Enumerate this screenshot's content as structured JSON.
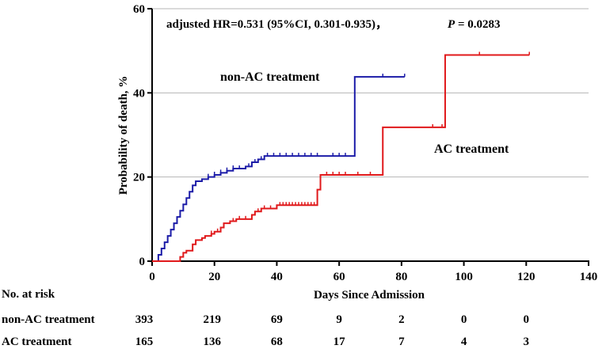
{
  "chart_data": {
    "type": "line",
    "subtype": "kaplan-meier-step",
    "title": "adjusted HR=0.531 (95%CI, 0.301-0.935)，",
    "p_label": "P",
    "p_value": " = 0.0283",
    "xlabel": "Days Since Admission",
    "ylabel": "Probability of death, %",
    "xlim": [
      0,
      140
    ],
    "ylim": [
      0,
      60
    ],
    "xticks": [
      0,
      20,
      40,
      60,
      80,
      100,
      120,
      140
    ],
    "yticks": [
      0,
      20,
      40,
      60
    ],
    "grid_y": true,
    "series": [
      {
        "name": "non-AC treatment",
        "color": "#1c1ca8",
        "steps": [
          [
            0,
            0
          ],
          [
            1.5,
            0
          ],
          [
            2,
            1.5
          ],
          [
            3,
            3
          ],
          [
            4,
            4.5
          ],
          [
            5,
            6
          ],
          [
            6,
            7.5
          ],
          [
            7,
            9
          ],
          [
            8,
            10.5
          ],
          [
            9,
            12
          ],
          [
            10,
            13.5
          ],
          [
            11,
            15
          ],
          [
            12,
            16.5
          ],
          [
            13,
            18
          ],
          [
            14,
            19
          ],
          [
            16,
            19.5
          ],
          [
            18,
            20
          ],
          [
            20,
            20.5
          ],
          [
            22,
            21
          ],
          [
            24,
            21.5
          ],
          [
            26,
            22
          ],
          [
            30,
            22.5
          ],
          [
            32,
            23.5
          ],
          [
            34,
            24.2
          ],
          [
            36,
            25
          ],
          [
            65,
            25
          ],
          [
            65,
            43.8
          ],
          [
            81,
            43.8
          ]
        ],
        "censors": [
          [
            18,
            20
          ],
          [
            20,
            20.5
          ],
          [
            22,
            21
          ],
          [
            24,
            21.5
          ],
          [
            26,
            22
          ],
          [
            28,
            22
          ],
          [
            31,
            22.5
          ],
          [
            33,
            23.5
          ],
          [
            35,
            24.2
          ],
          [
            37,
            25
          ],
          [
            39,
            25
          ],
          [
            41,
            25
          ],
          [
            43,
            25
          ],
          [
            45,
            25
          ],
          [
            47,
            25
          ],
          [
            49,
            25
          ],
          [
            51,
            25
          ],
          [
            53,
            25
          ],
          [
            58,
            25
          ],
          [
            60,
            25
          ],
          [
            62,
            25
          ],
          [
            74,
            43.8
          ],
          [
            81,
            43.8
          ]
        ]
      },
      {
        "name": "AC treatment",
        "color": "#e0191b",
        "steps": [
          [
            0,
            0
          ],
          [
            9,
            0
          ],
          [
            9,
            1
          ],
          [
            10,
            2
          ],
          [
            11,
            2.5
          ],
          [
            13,
            4
          ],
          [
            14,
            5
          ],
          [
            16,
            5.5
          ],
          [
            17,
            6
          ],
          [
            19,
            6.5
          ],
          [
            20,
            7
          ],
          [
            22,
            8
          ],
          [
            23,
            9
          ],
          [
            25,
            9.5
          ],
          [
            27,
            10
          ],
          [
            32,
            10
          ],
          [
            32,
            11
          ],
          [
            33,
            11.8
          ],
          [
            35,
            12.5
          ],
          [
            40,
            12.5
          ],
          [
            40,
            13.3
          ],
          [
            53,
            13.3
          ],
          [
            53,
            17
          ],
          [
            54,
            17
          ],
          [
            54,
            20.5
          ],
          [
            74,
            20.5
          ],
          [
            74,
            31.8
          ],
          [
            94,
            31.8
          ],
          [
            94,
            49
          ],
          [
            121,
            49
          ]
        ],
        "censors": [
          [
            19,
            6.5
          ],
          [
            21,
            7
          ],
          [
            26,
            9.5
          ],
          [
            28,
            10
          ],
          [
            30,
            10
          ],
          [
            34,
            11.8
          ],
          [
            36,
            12.5
          ],
          [
            38,
            12.5
          ],
          [
            41,
            13.3
          ],
          [
            42,
            13.3
          ],
          [
            43,
            13.3
          ],
          [
            44,
            13.3
          ],
          [
            45,
            13.3
          ],
          [
            46,
            13.3
          ],
          [
            47,
            13.3
          ],
          [
            48,
            13.3
          ],
          [
            49,
            13.3
          ],
          [
            50,
            13.3
          ],
          [
            51,
            13.3
          ],
          [
            52,
            13.3
          ],
          [
            56,
            20.5
          ],
          [
            58,
            20.5
          ],
          [
            60,
            20.5
          ],
          [
            62,
            20.5
          ],
          [
            66,
            20.5
          ],
          [
            70,
            20.5
          ],
          [
            90,
            31.8
          ],
          [
            93,
            31.8
          ],
          [
            105,
            49
          ],
          [
            121,
            49
          ]
        ]
      }
    ],
    "series_labels": {
      "non_ac": "non-AC treatment",
      "ac": "AC treatment"
    },
    "risk_table": {
      "header": "No. at risk",
      "rows": [
        {
          "label": "non-AC treatment",
          "values": [
            "393",
            "219",
            "69",
            "9",
            "2",
            "0",
            "0"
          ]
        },
        {
          "label": "AC treatment",
          "values": [
            "165",
            "136",
            "68",
            "17",
            "7",
            "4",
            "3"
          ]
        }
      ]
    }
  }
}
